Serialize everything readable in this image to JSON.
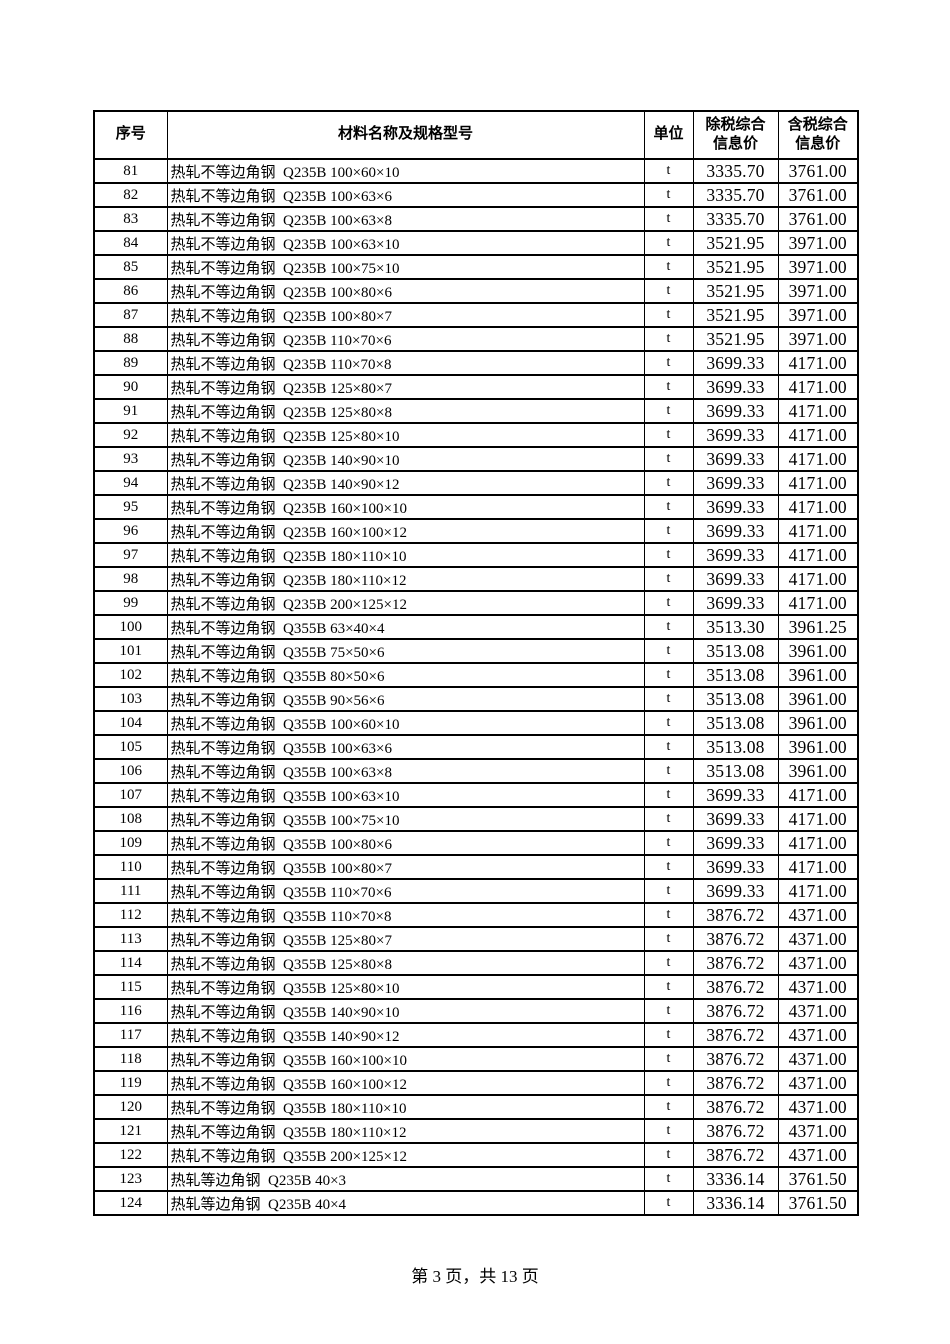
{
  "page": {
    "footer": "第 3 页，共 13 页"
  },
  "table": {
    "headers": {
      "no": "序号",
      "name": "材料名称及规格型号",
      "unit": "单位",
      "price_ex_tax": "除税综合\n信息价",
      "price_inc_tax": "含税综合\n信息价"
    },
    "rows": [
      {
        "no": "81",
        "name": "热轧不等边角钢  Q235B 100×60×10",
        "unit": "t",
        "price_ex_tax": "3335.70",
        "price_inc_tax": "3761.00"
      },
      {
        "no": "82",
        "name": "热轧不等边角钢  Q235B 100×63×6",
        "unit": "t",
        "price_ex_tax": "3335.70",
        "price_inc_tax": "3761.00"
      },
      {
        "no": "83",
        "name": "热轧不等边角钢  Q235B 100×63×8",
        "unit": "t",
        "price_ex_tax": "3335.70",
        "price_inc_tax": "3761.00"
      },
      {
        "no": "84",
        "name": "热轧不等边角钢  Q235B 100×63×10",
        "unit": "t",
        "price_ex_tax": "3521.95",
        "price_inc_tax": "3971.00"
      },
      {
        "no": "85",
        "name": "热轧不等边角钢  Q235B 100×75×10",
        "unit": "t",
        "price_ex_tax": "3521.95",
        "price_inc_tax": "3971.00"
      },
      {
        "no": "86",
        "name": "热轧不等边角钢  Q235B 100×80×6",
        "unit": "t",
        "price_ex_tax": "3521.95",
        "price_inc_tax": "3971.00"
      },
      {
        "no": "87",
        "name": "热轧不等边角钢  Q235B 100×80×7",
        "unit": "t",
        "price_ex_tax": "3521.95",
        "price_inc_tax": "3971.00"
      },
      {
        "no": "88",
        "name": "热轧不等边角钢  Q235B 110×70×6",
        "unit": "t",
        "price_ex_tax": "3521.95",
        "price_inc_tax": "3971.00"
      },
      {
        "no": "89",
        "name": "热轧不等边角钢  Q235B 110×70×8",
        "unit": "t",
        "price_ex_tax": "3699.33",
        "price_inc_tax": "4171.00"
      },
      {
        "no": "90",
        "name": "热轧不等边角钢  Q235B 125×80×7",
        "unit": "t",
        "price_ex_tax": "3699.33",
        "price_inc_tax": "4171.00"
      },
      {
        "no": "91",
        "name": "热轧不等边角钢  Q235B 125×80×8",
        "unit": "t",
        "price_ex_tax": "3699.33",
        "price_inc_tax": "4171.00"
      },
      {
        "no": "92",
        "name": "热轧不等边角钢  Q235B 125×80×10",
        "unit": "t",
        "price_ex_tax": "3699.33",
        "price_inc_tax": "4171.00"
      },
      {
        "no": "93",
        "name": "热轧不等边角钢  Q235B 140×90×10",
        "unit": "t",
        "price_ex_tax": "3699.33",
        "price_inc_tax": "4171.00"
      },
      {
        "no": "94",
        "name": "热轧不等边角钢  Q235B 140×90×12",
        "unit": "t",
        "price_ex_tax": "3699.33",
        "price_inc_tax": "4171.00"
      },
      {
        "no": "95",
        "name": "热轧不等边角钢  Q235B 160×100×10",
        "unit": "t",
        "price_ex_tax": "3699.33",
        "price_inc_tax": "4171.00"
      },
      {
        "no": "96",
        "name": "热轧不等边角钢  Q235B 160×100×12",
        "unit": "t",
        "price_ex_tax": "3699.33",
        "price_inc_tax": "4171.00"
      },
      {
        "no": "97",
        "name": "热轧不等边角钢  Q235B 180×110×10",
        "unit": "t",
        "price_ex_tax": "3699.33",
        "price_inc_tax": "4171.00"
      },
      {
        "no": "98",
        "name": "热轧不等边角钢  Q235B 180×110×12",
        "unit": "t",
        "price_ex_tax": "3699.33",
        "price_inc_tax": "4171.00"
      },
      {
        "no": "99",
        "name": "热轧不等边角钢  Q235B 200×125×12",
        "unit": "t",
        "price_ex_tax": "3699.33",
        "price_inc_tax": "4171.00"
      },
      {
        "no": "100",
        "name": "热轧不等边角钢  Q355B 63×40×4",
        "unit": "t",
        "price_ex_tax": "3513.30",
        "price_inc_tax": "3961.25"
      },
      {
        "no": "101",
        "name": "热轧不等边角钢  Q355B 75×50×6",
        "unit": "t",
        "price_ex_tax": "3513.08",
        "price_inc_tax": "3961.00"
      },
      {
        "no": "102",
        "name": "热轧不等边角钢  Q355B 80×50×6",
        "unit": "t",
        "price_ex_tax": "3513.08",
        "price_inc_tax": "3961.00"
      },
      {
        "no": "103",
        "name": "热轧不等边角钢  Q355B 90×56×6",
        "unit": "t",
        "price_ex_tax": "3513.08",
        "price_inc_tax": "3961.00"
      },
      {
        "no": "104",
        "name": "热轧不等边角钢  Q355B 100×60×10",
        "unit": "t",
        "price_ex_tax": "3513.08",
        "price_inc_tax": "3961.00"
      },
      {
        "no": "105",
        "name": "热轧不等边角钢  Q355B 100×63×6",
        "unit": "t",
        "price_ex_tax": "3513.08",
        "price_inc_tax": "3961.00"
      },
      {
        "no": "106",
        "name": "热轧不等边角钢  Q355B 100×63×8",
        "unit": "t",
        "price_ex_tax": "3513.08",
        "price_inc_tax": "3961.00"
      },
      {
        "no": "107",
        "name": "热轧不等边角钢  Q355B 100×63×10",
        "unit": "t",
        "price_ex_tax": "3699.33",
        "price_inc_tax": "4171.00"
      },
      {
        "no": "108",
        "name": "热轧不等边角钢  Q355B 100×75×10",
        "unit": "t",
        "price_ex_tax": "3699.33",
        "price_inc_tax": "4171.00"
      },
      {
        "no": "109",
        "name": "热轧不等边角钢  Q355B 100×80×6",
        "unit": "t",
        "price_ex_tax": "3699.33",
        "price_inc_tax": "4171.00"
      },
      {
        "no": "110",
        "name": "热轧不等边角钢  Q355B 100×80×7",
        "unit": "t",
        "price_ex_tax": "3699.33",
        "price_inc_tax": "4171.00"
      },
      {
        "no": "111",
        "name": "热轧不等边角钢  Q355B 110×70×6",
        "unit": "t",
        "price_ex_tax": "3699.33",
        "price_inc_tax": "4171.00"
      },
      {
        "no": "112",
        "name": "热轧不等边角钢  Q355B 110×70×8",
        "unit": "t",
        "price_ex_tax": "3876.72",
        "price_inc_tax": "4371.00"
      },
      {
        "no": "113",
        "name": "热轧不等边角钢  Q355B 125×80×7",
        "unit": "t",
        "price_ex_tax": "3876.72",
        "price_inc_tax": "4371.00"
      },
      {
        "no": "114",
        "name": "热轧不等边角钢  Q355B 125×80×8",
        "unit": "t",
        "price_ex_tax": "3876.72",
        "price_inc_tax": "4371.00"
      },
      {
        "no": "115",
        "name": "热轧不等边角钢  Q355B 125×80×10",
        "unit": "t",
        "price_ex_tax": "3876.72",
        "price_inc_tax": "4371.00"
      },
      {
        "no": "116",
        "name": "热轧不等边角钢  Q355B 140×90×10",
        "unit": "t",
        "price_ex_tax": "3876.72",
        "price_inc_tax": "4371.00"
      },
      {
        "no": "117",
        "name": "热轧不等边角钢  Q355B 140×90×12",
        "unit": "t",
        "price_ex_tax": "3876.72",
        "price_inc_tax": "4371.00"
      },
      {
        "no": "118",
        "name": "热轧不等边角钢  Q355B 160×100×10",
        "unit": "t",
        "price_ex_tax": "3876.72",
        "price_inc_tax": "4371.00"
      },
      {
        "no": "119",
        "name": "热轧不等边角钢  Q355B 160×100×12",
        "unit": "t",
        "price_ex_tax": "3876.72",
        "price_inc_tax": "4371.00"
      },
      {
        "no": "120",
        "name": "热轧不等边角钢  Q355B 180×110×10",
        "unit": "t",
        "price_ex_tax": "3876.72",
        "price_inc_tax": "4371.00"
      },
      {
        "no": "121",
        "name": "热轧不等边角钢  Q355B 180×110×12",
        "unit": "t",
        "price_ex_tax": "3876.72",
        "price_inc_tax": "4371.00"
      },
      {
        "no": "122",
        "name": "热轧不等边角钢  Q355B 200×125×12",
        "unit": "t",
        "price_ex_tax": "3876.72",
        "price_inc_tax": "4371.00"
      },
      {
        "no": "123",
        "name": "热轧等边角钢  Q235B 40×3",
        "unit": "t",
        "price_ex_tax": "3336.14",
        "price_inc_tax": "3761.50"
      },
      {
        "no": "124",
        "name": "热轧等边角钢  Q235B 40×4",
        "unit": "t",
        "price_ex_tax": "3336.14",
        "price_inc_tax": "3761.50"
      }
    ]
  }
}
